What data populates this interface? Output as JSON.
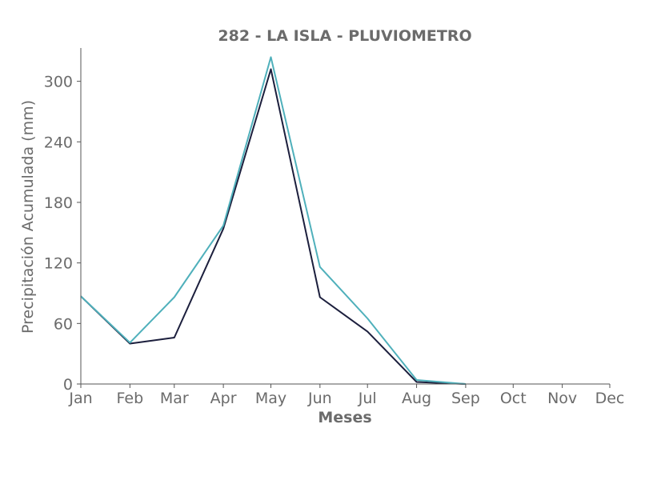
{
  "chart_data": {
    "type": "line",
    "title": "282 - LA ISLA - PLUVIOMETRO",
    "xlabel": "Meses",
    "ylabel": "Precipitación Acumulada (mm)",
    "categories": [
      "Jan",
      "Feb",
      "Mar",
      "Apr",
      "May",
      "Jun",
      "Jul",
      "Aug",
      "Sep",
      "Oct",
      "Nov",
      "Dec"
    ],
    "x_days": [
      1,
      32,
      60,
      91,
      121,
      152,
      182,
      213,
      244,
      274,
      305,
      335
    ],
    "xlim": [
      1,
      335
    ],
    "ylim": [
      0,
      333
    ],
    "yticks": [
      0,
      60,
      120,
      180,
      240,
      300
    ],
    "grid": false,
    "series": [
      {
        "color": "#1c1f3d",
        "x": [
          1,
          32,
          60,
          91,
          121,
          152,
          182,
          213,
          244
        ],
        "values": [
          87,
          40,
          46,
          154,
          312,
          86,
          52,
          2,
          0
        ]
      },
      {
        "color": "#4fb0bb",
        "x": [
          1,
          32,
          60,
          91,
          121,
          152,
          182,
          213,
          244
        ],
        "values": [
          87,
          41,
          86,
          157,
          324,
          116,
          65,
          4,
          0
        ]
      }
    ]
  }
}
